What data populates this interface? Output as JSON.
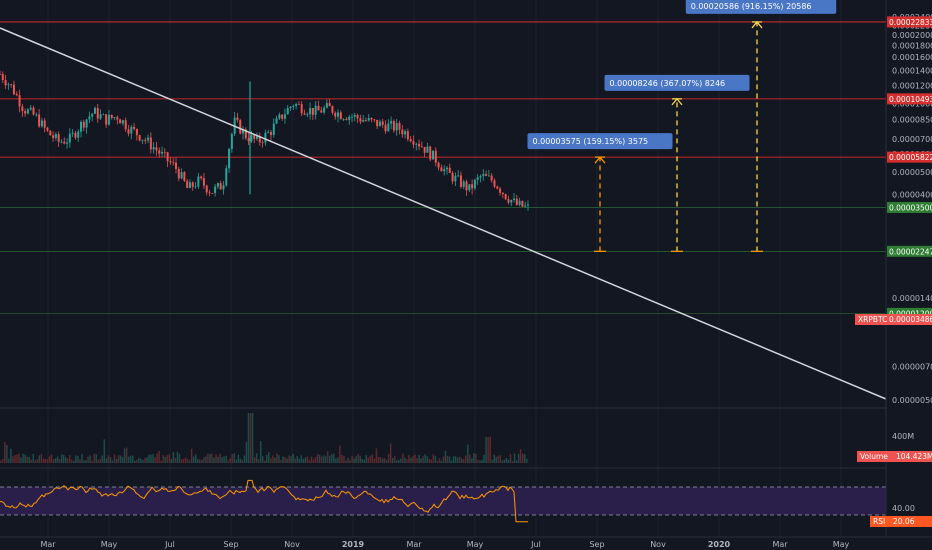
{
  "colors": {
    "background": "#131722",
    "grid": "#1e2230",
    "axis_text": "#b2b5be",
    "candle_up": "#26a69a",
    "candle_down": "#ef5350",
    "trendline": "#d1d4dc",
    "projection": "#ffd54f",
    "projection_alt": "#ff9800",
    "label_box": "#2962ff",
    "red_level": "#ff2a2a",
    "green_level": "#2e7d32",
    "rsi_line": "#ff9800",
    "rsi_band": "#2a1f4a"
  },
  "chart_data": [
    {
      "type": "line",
      "title": "",
      "ticker_label": "XRPBTC",
      "scale": "log",
      "x_ticks": [
        "Mar",
        "May",
        "Jul",
        "Sep",
        "Nov",
        "2019",
        "Mar",
        "May",
        "Jul",
        "Sep",
        "Nov",
        "2020",
        "Mar",
        "May"
      ],
      "y_ticks": [
        "0.00024000",
        "0.00022000",
        "0.00020000",
        "0.00018000",
        "0.00016000",
        "0.00014000",
        "0.00012000",
        "0.00010000",
        "0.00008500",
        "0.00007000",
        "0.00006000",
        "0.00005000",
        "0.00004000",
        "0.00003500",
        "0.00002247",
        "0.00001400",
        "0.00001200",
        "0.00000700",
        "0.00000500"
      ],
      "last_price": "0.00003486",
      "price_path_approx": [
        0.000135,
        0.000118,
        9.5e-05,
        8.8e-05,
        7.5e-05,
        6.8e-05,
        7e-05,
        8.2e-05,
        9.2e-05,
        8.5e-05,
        8.8e-05,
        7.8e-05,
        7.2e-05,
        6.5e-05,
        5.8e-05,
        5.2e-05,
        4.2e-05,
        4.6e-05,
        4.1e-05,
        4.4e-05,
        8.3e-05,
        7.2e-05,
        6.8e-05,
        7.5e-05,
        8.8e-05,
        0.0001,
        9.5e-05,
        9.2e-05,
        9.6e-05,
        9e-05,
        8.8e-05,
        8.5e-05,
        8.2e-05,
        8e-05,
        7.8e-05,
        7.2e-05,
        6.5e-05,
        5.8e-05,
        5e-05,
        4.6e-05,
        4.2e-05,
        4.8e-05,
        4.6e-05,
        4e-05,
        3.6e-05,
        3.486e-05
      ],
      "horizontal_levels": [
        {
          "value": "0.00022833",
          "color": "red"
        },
        {
          "value": "0.00010493",
          "color": "red"
        },
        {
          "value": "0.00005822",
          "color": "red"
        },
        {
          "value": "0.00003500",
          "color": "green"
        },
        {
          "value": "0.00002247",
          "color": "green"
        },
        {
          "value": "0.00001200",
          "color": "green"
        }
      ],
      "projections": [
        {
          "label": "0.00003575 (159.15%) 3575",
          "from": 2.247e-05,
          "to": 5.822e-05,
          "axis_date": "Sep"
        },
        {
          "label": "0.00008246 (367.07%) 8246",
          "from": 2.247e-05,
          "to": 0.00010493,
          "axis_date": "Nov"
        },
        {
          "label": "0.00020586 (916.15%) 20586",
          "from": 2.247e-05,
          "to": 0.00022833,
          "axis_date": "2020"
        }
      ],
      "trendline": {
        "description": "descending resistance from top-left to bottom-right"
      }
    },
    {
      "type": "bar",
      "title": "",
      "series_label": "Volume",
      "last_value": "104.423M",
      "y_ticks": [
        "400M"
      ]
    },
    {
      "type": "line",
      "title": "",
      "series_label": "RSI",
      "last_value": "20.06",
      "y_ticks": [
        "40.00"
      ],
      "upper_band": 70,
      "lower_band": 30
    }
  ]
}
